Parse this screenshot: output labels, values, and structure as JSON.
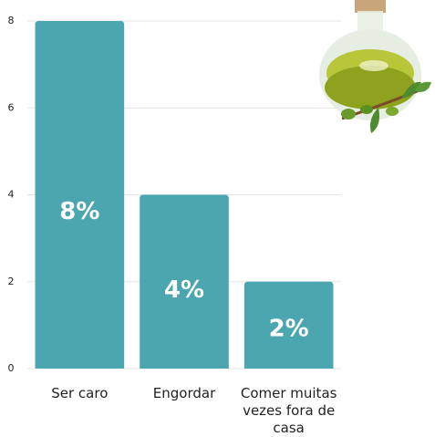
{
  "chart_data": {
    "type": "bar",
    "categories": [
      "Ser caro",
      "Engordar",
      "Comer muitas vezes fora de casa"
    ],
    "values": [
      8,
      4,
      2
    ],
    "value_labels": [
      "8%",
      "4%",
      "2%"
    ],
    "color": "#4ba6b0",
    "ylim": [
      0,
      8
    ],
    "yticks": [
      0,
      2,
      4,
      6,
      8
    ],
    "grid": true
  }
}
